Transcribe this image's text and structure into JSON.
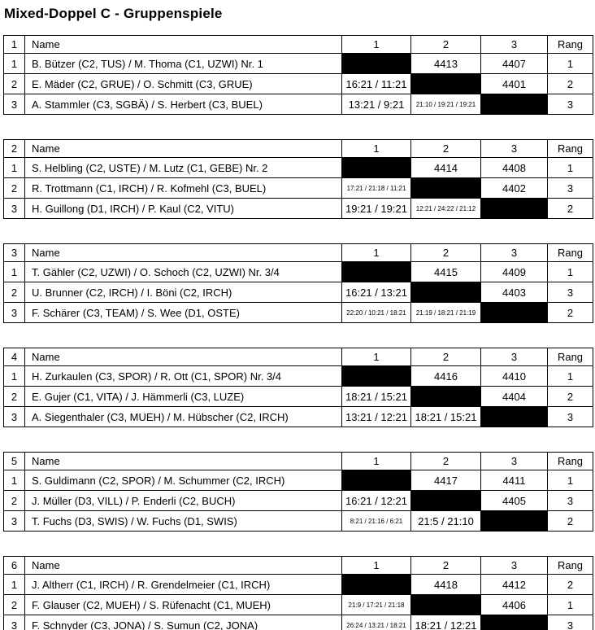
{
  "title": "Mixed-Doppel C - Gruppenspiele",
  "columns": {
    "name": "Name",
    "c1": "1",
    "c2": "2",
    "c3": "3",
    "rang": "Rang"
  },
  "groups": [
    {
      "number": "1",
      "rows": [
        {
          "pos": "1",
          "name": "B. Bützer (C2, TUS) / M. Thoma (C1, UZWI) Nr. 1",
          "results": [
            null,
            "4413",
            "4407"
          ],
          "rang": "1"
        },
        {
          "pos": "2",
          "name": "E. Mäder (C2, GRUE) / O. Schmitt (C3, GRUE)",
          "results": [
            "16:21 / 11:21",
            null,
            "4401"
          ],
          "rang": "2"
        },
        {
          "pos": "3",
          "name": "A. Stammler (C3, SGBÄ) / S. Herbert (C3, BUEL)",
          "results": [
            "13:21 / 9:21",
            "21:10 / 19:21 / 19:21",
            null
          ],
          "rang": "3"
        }
      ]
    },
    {
      "number": "2",
      "rows": [
        {
          "pos": "1",
          "name": "S. Helbling (C2, USTE) / M. Lutz (C1, GEBE) Nr. 2",
          "results": [
            null,
            "4414",
            "4408"
          ],
          "rang": "1"
        },
        {
          "pos": "2",
          "name": "R. Trottmann (C1, IRCH) / R. Kofmehl (C3, BUEL)",
          "results": [
            "17:21 / 21:18 / 11:21",
            null,
            "4402"
          ],
          "rang": "3"
        },
        {
          "pos": "3",
          "name": "H. Guillong (D1, IRCH) / P. Kaul (C2, VITU)",
          "results": [
            "19:21 / 19:21",
            "12:21 / 24:22 / 21:12",
            null
          ],
          "rang": "2"
        }
      ]
    },
    {
      "number": "3",
      "rows": [
        {
          "pos": "1",
          "name": "T. Gähler (C2, UZWI) / O. Schoch (C2, UZWI) Nr. 3/4",
          "results": [
            null,
            "4415",
            "4409"
          ],
          "rang": "1"
        },
        {
          "pos": "2",
          "name": "U. Brunner (C2, IRCH) / I. Böni (C2, IRCH)",
          "results": [
            "16:21 / 13:21",
            null,
            "4403"
          ],
          "rang": "3"
        },
        {
          "pos": "3",
          "name": "F. Schärer (C3, TEAM) / S. Wee (D1, OSTE)",
          "results": [
            "22:20 / 10:21 / 18:21",
            "21:19 / 18:21 / 21:19",
            null
          ],
          "rang": "2"
        }
      ]
    },
    {
      "number": "4",
      "rows": [
        {
          "pos": "1",
          "name": "H. Zurkaulen (C3, SPOR) / R. Ott (C1, SPOR) Nr. 3/4",
          "results": [
            null,
            "4416",
            "4410"
          ],
          "rang": "1"
        },
        {
          "pos": "2",
          "name": "E. Gujer (C1, VITA) / J. Hämmerli (C3, LUZE)",
          "results": [
            "18:21 / 15:21",
            null,
            "4404"
          ],
          "rang": "2"
        },
        {
          "pos": "3",
          "name": "A. Siegenthaler (C3, MUEH) / M. Hübscher (C2, IRCH)",
          "results": [
            "13:21 / 12:21",
            "18:21 / 15:21",
            null
          ],
          "rang": "3"
        }
      ]
    },
    {
      "number": "5",
      "rows": [
        {
          "pos": "1",
          "name": "S. Guldimann (C2, SPOR) / M. Schummer (C2, IRCH)",
          "results": [
            null,
            "4417",
            "4411"
          ],
          "rang": "1"
        },
        {
          "pos": "2",
          "name": "J. Müller (D3, VILL) / P. Enderli (C2, BUCH)",
          "results": [
            "16:21 / 12:21",
            null,
            "4405"
          ],
          "rang": "3"
        },
        {
          "pos": "3",
          "name": "T. Fuchs (D3, SWIS) / W. Fuchs (D1, SWIS)",
          "results": [
            "8:21 / 21:16 / 6:21",
            "21:5 / 21:10",
            null
          ],
          "rang": "2"
        }
      ]
    },
    {
      "number": "6",
      "rows": [
        {
          "pos": "1",
          "name": "J. Altherr (C1, IRCH) / R. Grendelmeier (C1, IRCH)",
          "results": [
            null,
            "4418",
            "4412"
          ],
          "rang": "2"
        },
        {
          "pos": "2",
          "name": "F. Glauser (C2, MUEH) / S. Rüfenacht (C1, MUEH)",
          "results": [
            "21:9 / 17:21 / 21:18",
            null,
            "4406"
          ],
          "rang": "1"
        },
        {
          "pos": "3",
          "name": "F. Schnyder (C3, JONA) / S. Sumun (C2, JONA)",
          "results": [
            "26:24 / 13:21 / 18:21",
            "18:21 / 12:21",
            null
          ],
          "rang": "3"
        }
      ]
    }
  ]
}
